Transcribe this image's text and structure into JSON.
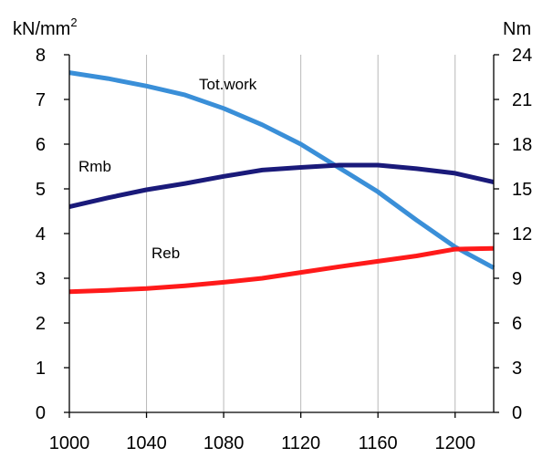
{
  "chart_data": {
    "type": "line",
    "x": [
      1000,
      1020,
      1040,
      1060,
      1080,
      1100,
      1120,
      1140,
      1160,
      1180,
      1200,
      1220
    ],
    "xticks": [
      1000,
      1040,
      1080,
      1120,
      1160,
      1200
    ],
    "xlim": [
      1000,
      1220
    ],
    "left_axis": {
      "unit": "kN/mm",
      "unit_sup": "2",
      "ylim": [
        0,
        8
      ],
      "ticks": [
        0,
        1,
        2,
        3,
        4,
        5,
        6,
        7,
        8
      ]
    },
    "right_axis": {
      "unit": "Nm",
      "ylim": [
        0,
        24
      ],
      "ticks": [
        0,
        3,
        6,
        9,
        12,
        15,
        18,
        21,
        24
      ]
    },
    "series": [
      {
        "name": "Tot.work",
        "axis": "right",
        "color": "#3a8fd8",
        "values": [
          22.8,
          22.4,
          21.9,
          21.3,
          20.4,
          19.3,
          18.0,
          16.4,
          14.8,
          12.9,
          11.1,
          9.7
        ]
      },
      {
        "name": "Rmb",
        "axis": "left",
        "color": "#1a1a7a",
        "values": [
          4.6,
          4.8,
          4.98,
          5.12,
          5.28,
          5.42,
          5.48,
          5.53,
          5.53,
          5.45,
          5.35,
          5.15
        ]
      },
      {
        "name": "Reb",
        "axis": "left",
        "color": "#ff1a1a",
        "values": [
          2.7,
          2.73,
          2.77,
          2.83,
          2.91,
          3.0,
          3.13,
          3.26,
          3.38,
          3.5,
          3.65,
          3.67
        ]
      }
    ],
    "grid": {
      "x": true,
      "y": false
    },
    "legend": "inline labels"
  }
}
